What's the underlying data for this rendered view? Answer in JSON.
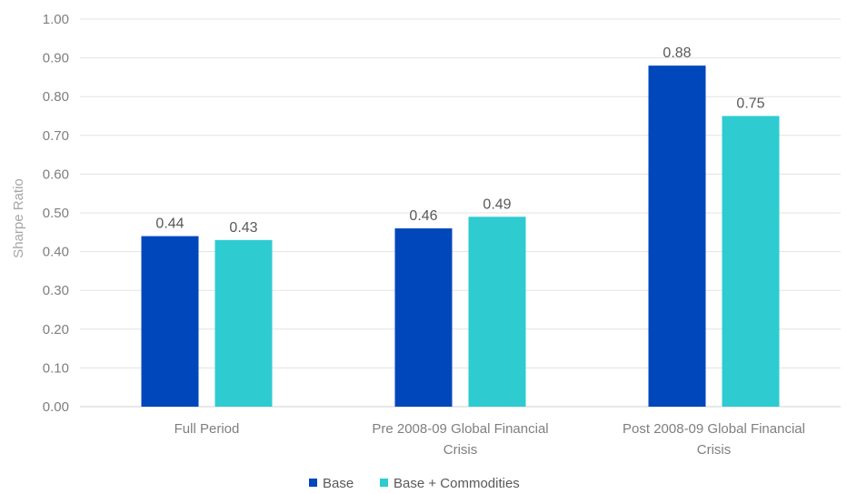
{
  "chart_data": {
    "type": "bar",
    "categories": [
      [
        "Full Period"
      ],
      [
        "Pre 2008-09 Global Financial",
        "Crisis"
      ],
      [
        "Post 2008-09 Global Financial",
        "Crisis"
      ]
    ],
    "series": [
      {
        "name": "Base",
        "values": [
          0.44,
          0.46,
          0.88
        ],
        "labels": [
          "0.44",
          "0.46",
          "0.88"
        ],
        "color": "#0047BB"
      },
      {
        "name": "Base + Commodities",
        "values": [
          0.43,
          0.49,
          0.75
        ],
        "labels": [
          "0.43",
          "0.49",
          "0.75"
        ],
        "color": "#2ECBD1"
      }
    ],
    "ylabel": "Sharpe Ratio",
    "ylim": [
      0,
      1.0
    ],
    "yticks": [
      "0.00",
      "0.10",
      "0.20",
      "0.30",
      "0.40",
      "0.50",
      "0.60",
      "0.70",
      "0.80",
      "0.90",
      "1.00"
    ],
    "grid": true,
    "legend": "bottom-center"
  }
}
